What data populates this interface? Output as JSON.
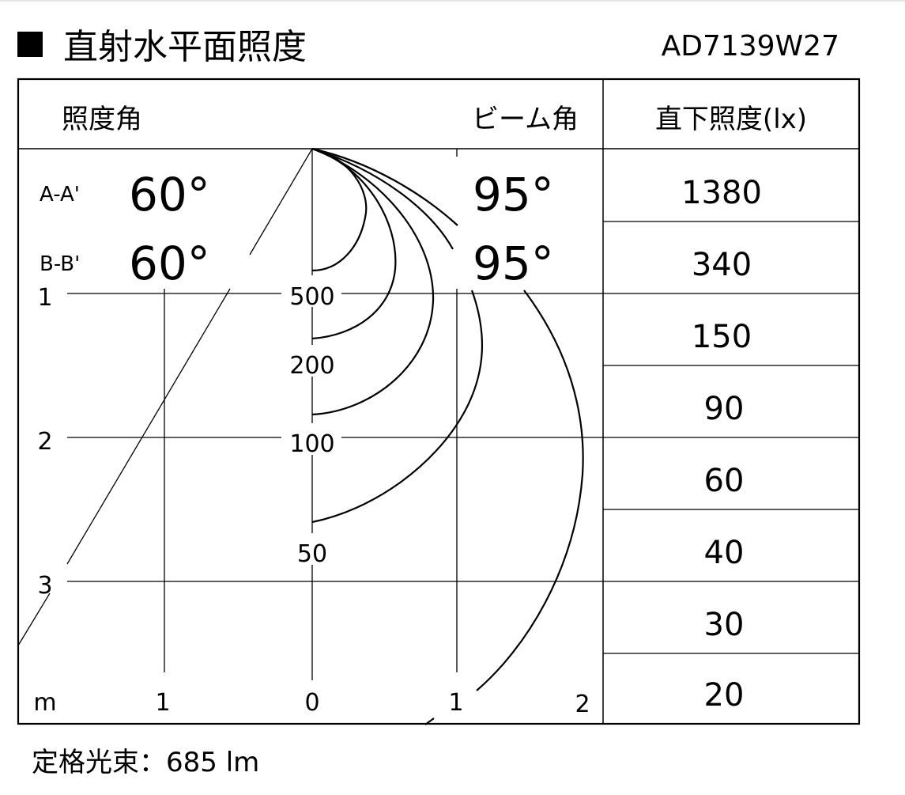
{
  "title": {
    "marker": "■",
    "text": "直射水平面照度",
    "model": "AD7139W27"
  },
  "header": {
    "illum_angle": "照度角",
    "beam_angle": "ビーム角",
    "direct_illum": "直下照度(lx)"
  },
  "angles": [
    {
      "label": "A-A'",
      "illum_angle": "60°",
      "beam_angle": "95°"
    },
    {
      "label": "B-B'",
      "illum_angle": "60°",
      "beam_angle": "95°"
    }
  ],
  "direct_illuminance": [
    "1380",
    "340",
    "150",
    "90",
    "60",
    "40",
    "30",
    "20"
  ],
  "axes": {
    "unit": "m",
    "x_ticks": [
      "1",
      "0",
      "1",
      "2"
    ],
    "y_ticks": [
      "1",
      "2",
      "3"
    ]
  },
  "contours": [
    "500",
    "200",
    "100",
    "50"
  ],
  "footer": {
    "label": "定格光束",
    "separator": "：",
    "value": "685 lm"
  }
}
